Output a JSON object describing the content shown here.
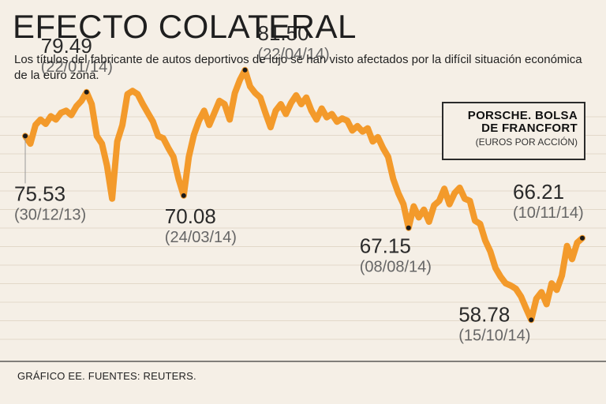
{
  "title": "EFECTO COLATERAL",
  "subtitle": "Los títulos del fabricante de autos deportivos de lujo se han visto afectados por la difícil situación económica de la euro zona.",
  "legend": {
    "title_line1": "PORSCHE. BOLSA",
    "title_line2": "DE FRANCFORT",
    "unit": "(EUROS POR ACCIÓN)"
  },
  "footer": "GRÁFICO EE. FUENTES: REUTERS.",
  "colors": {
    "line": "#f39a2b",
    "background": "#f5efe6",
    "grid": "#e2d8c9",
    "dot": "#1a1a1a"
  },
  "chart_data": {
    "type": "line",
    "title": "EFECTO COLATERAL",
    "ylabel": "Euros por acción",
    "xlabel": "",
    "ylim": [
      55,
      85
    ],
    "x_range": [
      "30/12/13",
      "10/11/14"
    ],
    "grid": true,
    "series": [
      {
        "name": "Porsche. Bolsa de Francfort",
        "values": [
          75.5,
          74.8,
          76.5,
          77.0,
          76.6,
          77.3,
          77.0,
          77.6,
          77.8,
          77.4,
          78.2,
          78.7,
          79.49,
          78.4,
          75.5,
          74.8,
          72.8,
          69.8,
          75.0,
          76.5,
          79.3,
          79.6,
          79.3,
          78.4,
          77.6,
          76.8,
          75.5,
          75.3,
          74.4,
          73.6,
          71.6,
          70.08,
          73.6,
          75.6,
          76.9,
          77.8,
          76.5,
          77.6,
          78.7,
          78.4,
          77.0,
          79.4,
          80.6,
          81.5,
          80.0,
          79.4,
          79.0,
          77.6,
          76.3,
          77.8,
          78.4,
          77.5,
          78.5,
          79.2,
          78.4,
          79.0,
          77.8,
          77.0,
          78.0,
          77.2,
          77.5,
          76.8,
          77.1,
          76.9,
          76.0,
          76.4,
          75.9,
          76.2,
          75.0,
          75.4,
          74.4,
          73.6,
          71.6,
          70.3,
          69.3,
          67.15,
          69.1,
          68.1,
          68.8,
          67.7,
          69.2,
          69.6,
          70.7,
          69.3,
          70.3,
          70.8,
          69.8,
          69.6,
          67.8,
          67.5,
          66.0,
          65.0,
          63.5,
          62.7,
          62.1,
          61.9,
          61.6,
          60.9,
          59.8,
          58.78,
          60.7,
          61.3,
          60.2,
          62.1,
          61.5,
          62.8,
          65.5,
          64.3,
          65.8,
          66.21
        ],
        "annotations": [
          {
            "label": "75.53",
            "date": "(30/12/13)",
            "index": 0
          },
          {
            "label": "79.49",
            "date": "(22/01/14)",
            "index": 12
          },
          {
            "label": "70.08",
            "date": "(24/03/14)",
            "index": 31
          },
          {
            "label": "81.50",
            "date": "(22/04/14)",
            "index": 43
          },
          {
            "label": "67.15",
            "date": "(08/08/14)",
            "index": 75
          },
          {
            "label": "58.78",
            "date": "(15/10/14)",
            "index": 99
          },
          {
            "label": "66.21",
            "date": "(10/11/14)",
            "index": 109
          }
        ]
      }
    ]
  }
}
